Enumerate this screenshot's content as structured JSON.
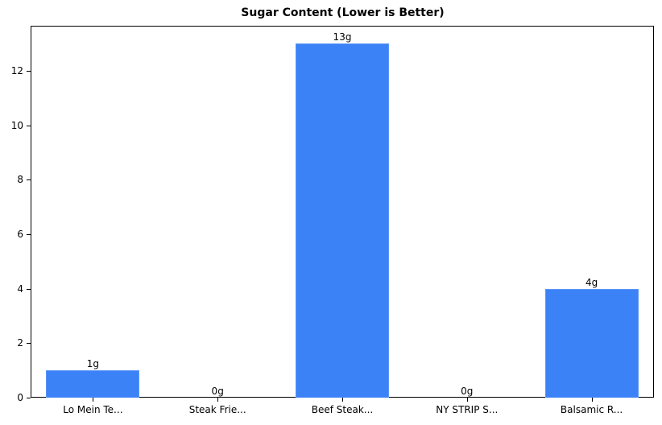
{
  "chart_data": {
    "type": "bar",
    "title": "Sugar Content (Lower is Better)",
    "xlabel": "",
    "ylabel": "",
    "categories": [
      "Lo Mein Te...",
      "Steak Frie...",
      "Beef Steak...",
      "NY STRIP S...",
      "Balsamic R..."
    ],
    "values": [
      1,
      0,
      13,
      0,
      4
    ],
    "value_labels": [
      "1g",
      "0g",
      "13g",
      "0g",
      "4g"
    ],
    "ylim": [
      0,
      13.65
    ],
    "yticks": [
      0,
      2,
      4,
      6,
      8,
      10,
      12
    ],
    "grid": false,
    "legend": null,
    "bar_color": "#3b82f6"
  }
}
